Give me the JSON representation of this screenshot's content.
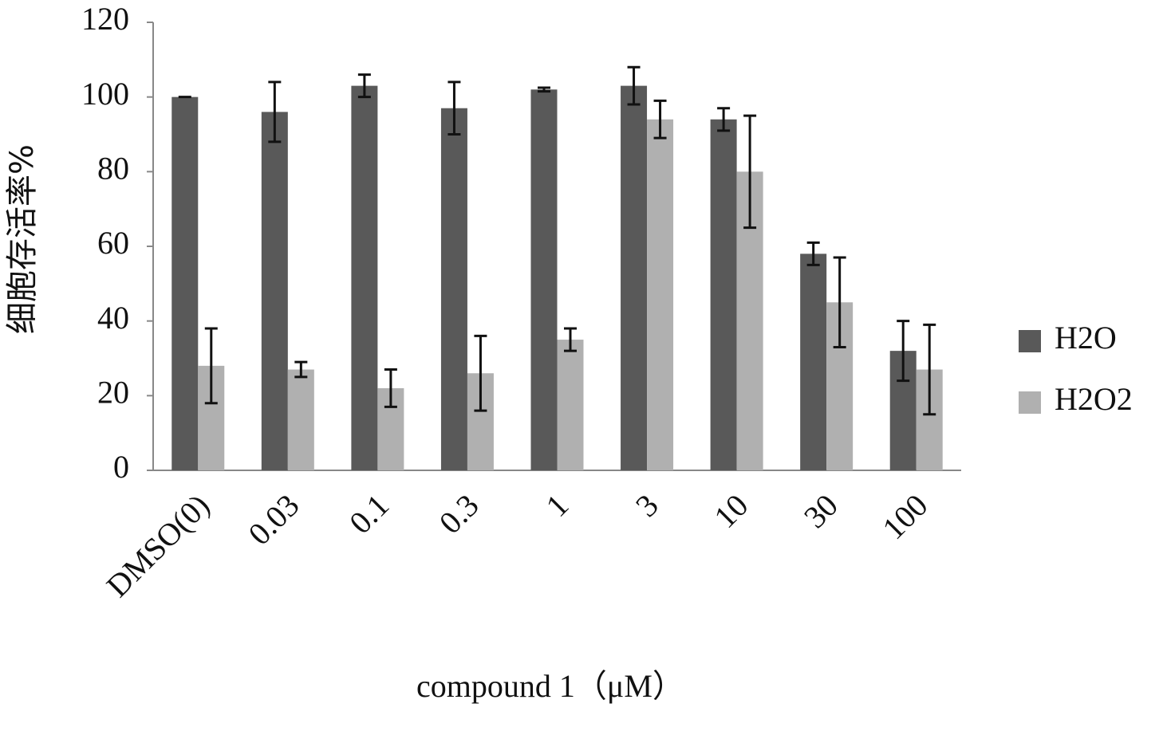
{
  "chart_data": {
    "type": "bar",
    "ylabel": "细胞存活率%",
    "xlabel": "compound 1（μM）",
    "categories": [
      "DMSO(0)",
      "0.03",
      "0.1",
      "0.3",
      "1",
      "3",
      "10",
      "30",
      "100"
    ],
    "series": [
      {
        "name": "H2O",
        "color": "#595959",
        "values": [
          100,
          96,
          103,
          97,
          102,
          103,
          94,
          58,
          32
        ],
        "errors": [
          0,
          8,
          3,
          7,
          0.5,
          5,
          3,
          3,
          8
        ]
      },
      {
        "name": "H2O2",
        "color": "#b0b0b0",
        "values": [
          28,
          27,
          22,
          26,
          35,
          94,
          80,
          45,
          27
        ],
        "errors": [
          10,
          2,
          5,
          10,
          3,
          5,
          15,
          12,
          12
        ]
      }
    ],
    "ylim": [
      0,
      120
    ],
    "yticks": [
      0,
      20,
      40,
      60,
      80,
      100,
      120
    ],
    "grid": false,
    "legend": "right"
  }
}
